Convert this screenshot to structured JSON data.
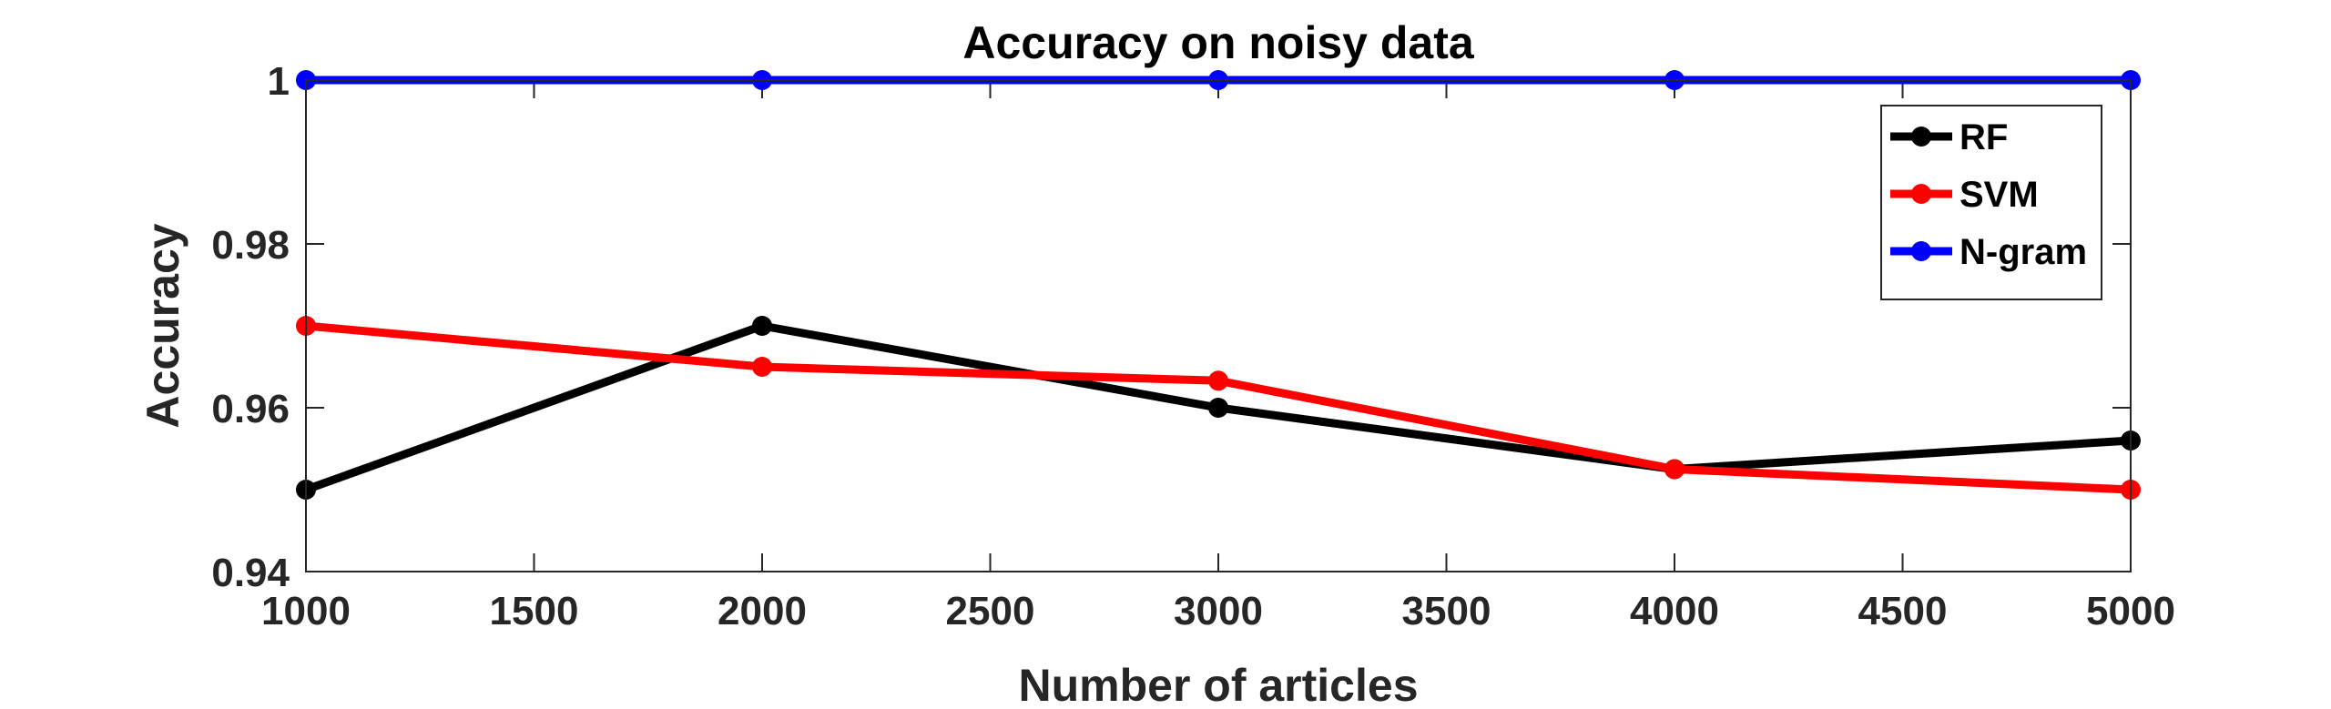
{
  "chart_data": {
    "type": "line",
    "title": "Accuracy on noisy data",
    "xlabel": "Number of articles",
    "ylabel": "Accuracy",
    "xlim": [
      1000,
      5000
    ],
    "ylim": [
      0.94,
      1.0
    ],
    "xticks": [
      1000,
      1500,
      2000,
      2500,
      3000,
      3500,
      4000,
      4500,
      5000
    ],
    "yticks": [
      0.94,
      0.96,
      0.98,
      1.0
    ],
    "xtick_labels": [
      "1000",
      "1500",
      "2000",
      "2500",
      "3000",
      "3500",
      "4000",
      "4500",
      "5000"
    ],
    "ytick_labels": [
      "0.94",
      "0.96",
      "0.98",
      "1"
    ],
    "grid": false,
    "legend_position": "top-right",
    "x": [
      1000,
      2000,
      3000,
      4000,
      5000
    ],
    "series": [
      {
        "name": "RF",
        "color": "#000000",
        "values": [
          0.95,
          0.97,
          0.96,
          0.9525,
          0.956
        ]
      },
      {
        "name": "SVM",
        "color": "#ff0000",
        "values": [
          0.97,
          0.965,
          0.9633,
          0.9525,
          0.95
        ]
      },
      {
        "name": "N-gram",
        "color": "#0000ff",
        "values": [
          1.0,
          1.0,
          1.0,
          1.0,
          1.0
        ]
      }
    ]
  }
}
